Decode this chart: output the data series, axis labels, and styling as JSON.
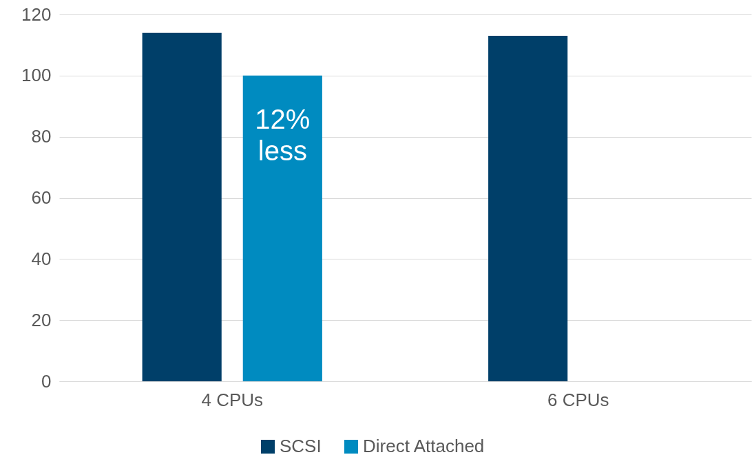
{
  "chart_data": {
    "type": "bar",
    "categories": [
      "4 CPUs",
      "6 CPUs"
    ],
    "series": [
      {
        "name": "SCSI",
        "color": "#003f69",
        "values": [
          114,
          113
        ]
      },
      {
        "name": "Direct Attached",
        "color": "#008bc0",
        "values": [
          100,
          null
        ]
      }
    ],
    "ylim": [
      0,
      120
    ],
    "yticks": [
      0,
      20,
      40,
      60,
      80,
      100,
      120
    ],
    "grid": "y",
    "legend": "bottom",
    "annotations": [
      "12%\nless"
    ]
  }
}
